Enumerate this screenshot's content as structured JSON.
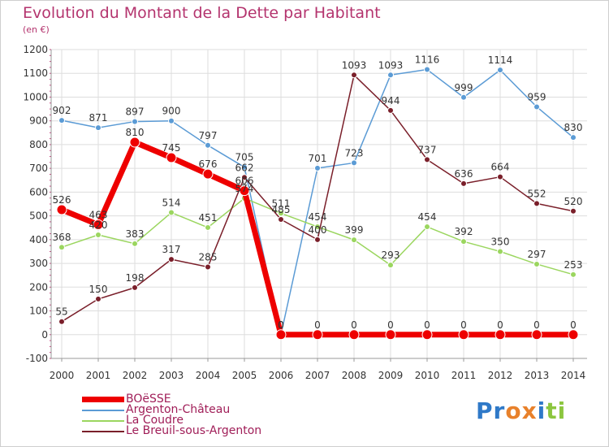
{
  "header": {
    "title": "Evolution du Montant de la Dette par Habitant",
    "subtitle": "(en €)"
  },
  "brand": {
    "text": "Proxiti",
    "letters": [
      {
        "ch": "P",
        "color": "#2f79c8"
      },
      {
        "ch": "r",
        "color": "#2f79c8"
      },
      {
        "ch": "o",
        "color": "#e8812b"
      },
      {
        "ch": "x",
        "color": "#e8812b"
      },
      {
        "ch": "i",
        "color": "#2f79c8"
      },
      {
        "ch": "t",
        "color": "#8cc63f"
      },
      {
        "ch": "i",
        "color": "#8cc63f"
      }
    ]
  },
  "chart_data": {
    "type": "line",
    "x": [
      "2000",
      "2001",
      "2002",
      "2003",
      "2004",
      "2005",
      "2006",
      "2007",
      "2008",
      "2009",
      "2010",
      "2011",
      "2012",
      "2013",
      "2014"
    ],
    "ylim": [
      -100,
      1200
    ],
    "yticks": [
      -100,
      0,
      100,
      200,
      300,
      400,
      500,
      600,
      700,
      800,
      900,
      1000,
      1100,
      1200
    ],
    "grid": true,
    "legend_position": "bottom-left",
    "series": [
      {
        "name": "Argenton-Château",
        "color": "#5b9bd5",
        "values": [
          902,
          871,
          897,
          900,
          797,
          705,
          0,
          701,
          723,
          1093,
          1116,
          999,
          1114,
          959,
          830
        ]
      },
      {
        "name": "La Coudre",
        "color": "#9bd65f",
        "values": [
          368,
          420,
          383,
          514,
          451,
          574,
          511,
          454,
          399,
          293,
          454,
          392,
          350,
          297,
          253
        ]
      },
      {
        "name": "Le Breuil-sous-Argenton",
        "color": "#7a1f2a",
        "values": [
          55,
          150,
          198,
          317,
          285,
          662,
          485,
          400,
          1093,
          944,
          737,
          636,
          664,
          552,
          520
        ]
      },
      {
        "name": "BOëSSE",
        "color": "#ee0000",
        "values": [
          526,
          463,
          810,
          745,
          676,
          606,
          0,
          0,
          0,
          0,
          0,
          0,
          0,
          0,
          0
        ]
      }
    ],
    "value_labels": [
      [
        "902",
        "871",
        "897",
        "900",
        "797",
        "705",
        "0",
        "701",
        "723",
        "1093",
        "1116",
        "999",
        "1114",
        "959",
        "830"
      ],
      [
        "368",
        "420",
        "383",
        "514",
        "451",
        "574",
        "511",
        "454",
        "399",
        "293",
        "454",
        "392",
        "350",
        "297",
        "253"
      ],
      [
        "55",
        "150",
        "198",
        "317",
        "285",
        "662",
        "485",
        "400",
        "1093",
        "944",
        "737",
        "636",
        "664",
        "552",
        "520"
      ],
      [
        "526",
        "463",
        "810",
        "745",
        "676",
        "606",
        "0",
        "0",
        "0",
        "0",
        "0",
        "0",
        "0",
        "0",
        "0"
      ]
    ]
  },
  "legend": {
    "items": [
      {
        "label": "BOëSSE",
        "color": "#ee0000",
        "width": 7
      },
      {
        "label": "Argenton-Château",
        "color": "#5b9bd5",
        "width": 1.5
      },
      {
        "label": "La Coudre",
        "color": "#9bd65f",
        "width": 1.5
      },
      {
        "label": "Le Breuil-sous-Argenton",
        "color": "#7a1f2a",
        "width": 1.5
      }
    ]
  }
}
